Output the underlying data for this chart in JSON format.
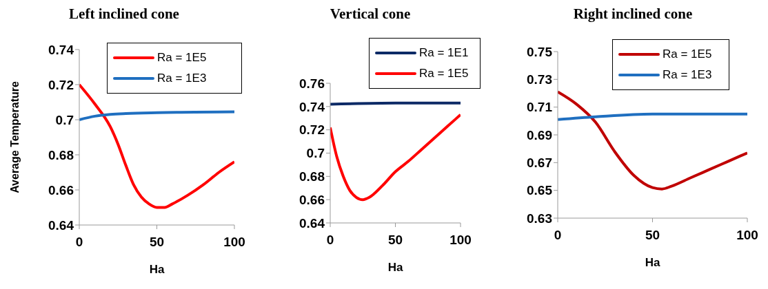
{
  "chart_data": [
    {
      "type": "line",
      "title": "Left inclined cone",
      "xlabel": "Ha",
      "ylabel": "Average Temperature",
      "xlim": [
        0,
        100
      ],
      "xticks": [
        0,
        50,
        100
      ],
      "ylim": [
        0.64,
        0.74
      ],
      "yticks": [
        0.64,
        0.66,
        0.68,
        0.7,
        0.72,
        0.74
      ],
      "grid": false,
      "legend": "top right",
      "marker": "none",
      "series": [
        {
          "name": "Ra = 1E5",
          "color": "#ff0000",
          "x": [
            0,
            10,
            20,
            25,
            30,
            35,
            40,
            45,
            50,
            55,
            60,
            70,
            80,
            90,
            100
          ],
          "values": [
            0.72,
            0.709,
            0.696,
            0.686,
            0.674,
            0.663,
            0.656,
            0.652,
            0.65,
            0.65,
            0.652,
            0.657,
            0.663,
            0.67,
            0.676
          ]
        },
        {
          "name": "Ra = 1E3",
          "color": "#1f6fc0",
          "x": [
            0,
            10,
            20,
            30,
            50,
            100
          ],
          "values": [
            0.7,
            0.702,
            0.703,
            0.7035,
            0.704,
            0.7045
          ]
        }
      ]
    },
    {
      "type": "line",
      "title": "Vertical cone",
      "xlabel": "Ha",
      "xlim": [
        0,
        100
      ],
      "xticks": [
        0,
        50,
        100
      ],
      "ylim": [
        0.64,
        0.76
      ],
      "yticks": [
        0.64,
        0.66,
        0.68,
        0.7,
        0.72,
        0.74,
        0.76
      ],
      "grid": false,
      "legend": "top right",
      "marker": "none",
      "series": [
        {
          "name": "Ra = 1E1",
          "color": "#0d2a66",
          "x": [
            0,
            50,
            100
          ],
          "values": [
            0.742,
            0.743,
            0.743
          ]
        },
        {
          "name": "Ra = 1E5",
          "color": "#ff0000",
          "x": [
            0,
            5,
            10,
            15,
            20,
            25,
            30,
            40,
            50,
            60,
            70,
            80,
            90,
            100
          ],
          "values": [
            0.722,
            0.697,
            0.68,
            0.668,
            0.662,
            0.66,
            0.662,
            0.672,
            0.684,
            0.693,
            0.703,
            0.713,
            0.723,
            0.733
          ]
        }
      ]
    },
    {
      "type": "line",
      "title": "Right inclined cone",
      "xlabel": "Ha",
      "xlim": [
        0,
        100
      ],
      "xticks": [
        0,
        50,
        100
      ],
      "ylim": [
        0.63,
        0.75
      ],
      "yticks": [
        0.63,
        0.65,
        0.67,
        0.69,
        0.71,
        0.73,
        0.75
      ],
      "grid": false,
      "legend": "top right",
      "marker": "none",
      "series": [
        {
          "name": "Ra = 1E5",
          "color": "#c00000",
          "x": [
            0,
            10,
            20,
            30,
            40,
            50,
            55,
            60,
            70,
            80,
            90,
            100
          ],
          "values": [
            0.721,
            0.712,
            0.699,
            0.678,
            0.661,
            0.652,
            0.651,
            0.653,
            0.659,
            0.665,
            0.671,
            0.677
          ]
        },
        {
          "name": "Ra = 1E3",
          "color": "#1f6fc0",
          "x": [
            0,
            20,
            50,
            100
          ],
          "values": [
            0.701,
            0.703,
            0.705,
            0.705
          ]
        }
      ]
    }
  ]
}
